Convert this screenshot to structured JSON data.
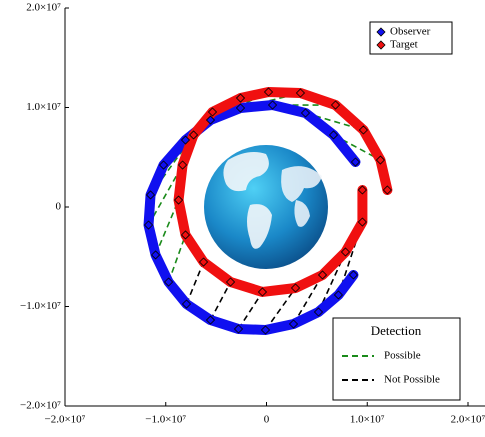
{
  "chart_data": {
    "type": "orbit",
    "xlim": [
      -20000000,
      20000000
    ],
    "ylim": [
      -20000000,
      20000000
    ],
    "xticks": [
      {
        "value": -20000000,
        "label": "−2.0×10⁷"
      },
      {
        "value": -10000000,
        "label": "−1.0×10⁷"
      },
      0,
      {
        "value": 10000000,
        "label": "1.0×10⁷"
      },
      {
        "value": 20000000,
        "label": "2.0×10⁷"
      }
    ],
    "yticks": [
      {
        "value": 20000000,
        "label": "2.0×10⁷"
      },
      {
        "value": 10000000,
        "label": "1.0×10⁷"
      },
      0,
      {
        "value": -10000000,
        "label": "−1.0×10⁷"
      },
      {
        "value": -20000000,
        "label": "−2.0×10⁷"
      }
    ],
    "series": [
      {
        "name": "Observer",
        "color": "#1010f0",
        "x": [
          8830000,
          6650000,
          3870000,
          600000,
          -2580000,
          -5560000,
          -8040000,
          -10220000,
          -11510000,
          -11710000,
          -11010000,
          -9720000,
          -7940000,
          -5560000,
          -2780000,
          -100000,
          2680000,
          5160000,
          7140000,
          8630000
        ],
        "y": [
          4520000,
          7240000,
          9450000,
          10250000,
          9950000,
          8740000,
          6730000,
          4220000,
          1210000,
          -1810000,
          -4820000,
          -7540000,
          -9750000,
          -11360000,
          -12260000,
          -12360000,
          -11760000,
          -10550000,
          -8840000,
          -6830000
        ]
      },
      {
        "name": "Target",
        "color": "#f01010",
        "x": [
          12000000,
          11310000,
          9620000,
          6850000,
          3370000,
          200000,
          -2580000,
          -5360000,
          -7240000,
          -8330000,
          -8730000,
          -8040000,
          -6250000,
          -3570000,
          -400000,
          2880000,
          5560000,
          7840000,
          9520000,
          9520000
        ],
        "y": [
          1710000,
          4720000,
          7740000,
          10250000,
          11460000,
          11560000,
          10950000,
          9550000,
          7240000,
          4220000,
          700000,
          -2810000,
          -5530000,
          -7540000,
          -8540000,
          -8140000,
          -6830000,
          -4520000,
          -1510000,
          1710000
        ]
      }
    ],
    "detection": {
      "title": "Detection",
      "series": [
        {
          "name": "Possible",
          "color": "#1a8a1a",
          "segments": [
            [
              6650000,
              7240000,
              11310000,
              4720000
            ],
            [
              3870000,
              9450000,
              9620000,
              7740000
            ],
            [
              600000,
              10250000,
              6850000,
              10250000
            ],
            [
              -2580000,
              9950000,
              3370000,
              11460000
            ],
            [
              -5560000,
              8740000,
              200000,
              11560000
            ],
            [
              -8040000,
              6730000,
              -2580000,
              10950000
            ],
            [
              -10220000,
              4220000,
              -5360000,
              9550000
            ],
            [
              -11510000,
              1210000,
              -7240000,
              7240000
            ],
            [
              -11710000,
              -1810000,
              -8330000,
              4220000
            ],
            [
              -11010000,
              -4820000,
              -8730000,
              700000
            ],
            [
              -9720000,
              -7540000,
              -8040000,
              -2810000
            ]
          ]
        },
        {
          "name": "Not Possible",
          "color": "#000000",
          "segments": [
            [
              -7940000,
              -9750000,
              -6250000,
              -5530000
            ],
            [
              -5560000,
              -11360000,
              -3570000,
              -7540000
            ],
            [
              -2780000,
              -12260000,
              -400000,
              -8540000
            ],
            [
              -100000,
              -12360000,
              2880000,
              -8140000
            ],
            [
              2680000,
              -11760000,
              5560000,
              -6830000
            ],
            [
              5160000,
              -10550000,
              7840000,
              -4520000
            ],
            [
              7140000,
              -8840000,
              9520000,
              -1510000
            ]
          ]
        }
      ]
    }
  }
}
